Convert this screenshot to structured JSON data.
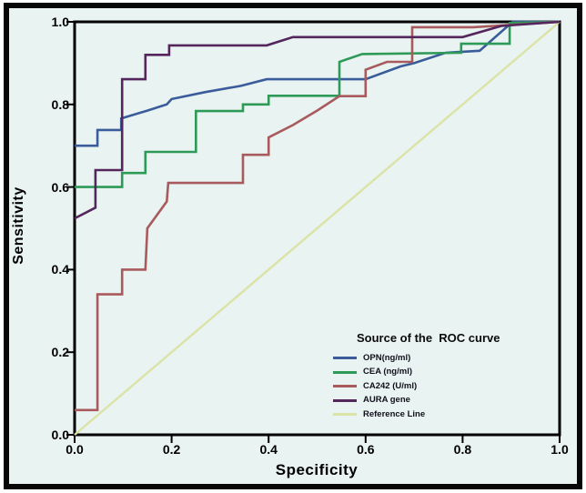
{
  "figure": {
    "background_color": "#e8f3f2",
    "border_color": "#070707"
  },
  "axes": {
    "x_title": "Specificity",
    "y_title": "Sensitivity",
    "x_tick_labels": [
      "0.0",
      "0.2",
      "0.4",
      "0.6",
      "0.8",
      "1.0"
    ],
    "y_tick_labels": [
      "0.0",
      "0.2",
      "0.4",
      "0.6",
      "0.8",
      "1.0"
    ]
  },
  "legend": {
    "title": "Source of the  ROC curve"
  },
  "chart_data": {
    "type": "line",
    "subtype": "roc-step-curves",
    "title": "",
    "xlabel": "Specificity",
    "ylabel": "Sensitivity",
    "xlim": [
      0,
      1
    ],
    "ylim": [
      0,
      1
    ],
    "x_ticks": [
      0,
      0.2,
      0.4,
      0.6,
      0.8,
      1.0
    ],
    "y_ticks": [
      0,
      0.2,
      0.4,
      0.6,
      0.8,
      1.0
    ],
    "grid": false,
    "legend_position": "lower-right-inside",
    "series": [
      {
        "name": "OPN(ng/ml)",
        "color": "#3b5c9b",
        "points": [
          [
            0,
            0.7
          ],
          [
            0.047,
            0.7
          ],
          [
            0.047,
            0.738
          ],
          [
            0.096,
            0.738
          ],
          [
            0.096,
            0.766
          ],
          [
            0.15,
            0.785
          ],
          [
            0.19,
            0.8
          ],
          [
            0.2,
            0.813
          ],
          [
            0.27,
            0.83
          ],
          [
            0.343,
            0.845
          ],
          [
            0.396,
            0.861
          ],
          [
            0.6,
            0.861
          ],
          [
            0.672,
            0.892
          ],
          [
            0.7,
            0.9
          ],
          [
            0.765,
            0.925
          ],
          [
            0.835,
            0.93
          ],
          [
            0.903,
            1.0
          ],
          [
            1.0,
            1.0
          ]
        ]
      },
      {
        "name": "CEA (ng/ml)",
        "color": "#2e9a57",
        "points": [
          [
            0,
            0.6
          ],
          [
            0.098,
            0.6
          ],
          [
            0.098,
            0.634
          ],
          [
            0.146,
            0.634
          ],
          [
            0.146,
            0.685
          ],
          [
            0.25,
            0.685
          ],
          [
            0.25,
            0.784
          ],
          [
            0.347,
            0.784
          ],
          [
            0.347,
            0.8
          ],
          [
            0.4,
            0.8
          ],
          [
            0.4,
            0.821
          ],
          [
            0.546,
            0.821
          ],
          [
            0.546,
            0.903
          ],
          [
            0.593,
            0.922
          ],
          [
            0.797,
            0.925
          ],
          [
            0.797,
            0.947
          ],
          [
            0.897,
            0.947
          ],
          [
            0.897,
            0.997
          ],
          [
            1.0,
            1.0
          ]
        ]
      },
      {
        "name": "CA242 (U/ml)",
        "color": "#a95a5d",
        "points": [
          [
            0,
            0.06
          ],
          [
            0.047,
            0.06
          ],
          [
            0.047,
            0.34
          ],
          [
            0.098,
            0.34
          ],
          [
            0.098,
            0.4
          ],
          [
            0.146,
            0.4
          ],
          [
            0.15,
            0.5
          ],
          [
            0.19,
            0.565
          ],
          [
            0.193,
            0.61
          ],
          [
            0.347,
            0.61
          ],
          [
            0.347,
            0.678
          ],
          [
            0.4,
            0.678
          ],
          [
            0.4,
            0.72
          ],
          [
            0.45,
            0.75
          ],
          [
            0.5,
            0.785
          ],
          [
            0.546,
            0.82
          ],
          [
            0.6,
            0.82
          ],
          [
            0.6,
            0.884
          ],
          [
            0.644,
            0.903
          ],
          [
            0.696,
            0.903
          ],
          [
            0.696,
            0.987
          ],
          [
            0.822,
            0.987
          ],
          [
            1.0,
            1.0
          ]
        ]
      },
      {
        "name": "AURA gene",
        "color": "#54265c",
        "points": [
          [
            0,
            0.524
          ],
          [
            0.043,
            0.55
          ],
          [
            0.043,
            0.641
          ],
          [
            0.098,
            0.641
          ],
          [
            0.098,
            0.861
          ],
          [
            0.146,
            0.861
          ],
          [
            0.146,
            0.92
          ],
          [
            0.195,
            0.92
          ],
          [
            0.195,
            0.943
          ],
          [
            0.396,
            0.943
          ],
          [
            0.45,
            0.963
          ],
          [
            0.8,
            0.963
          ],
          [
            0.88,
            0.99
          ],
          [
            1.0,
            1.0
          ]
        ]
      },
      {
        "name": "Reference Line",
        "color": "#dbe3a6",
        "points": [
          [
            0,
            0
          ],
          [
            1,
            1
          ]
        ]
      }
    ]
  }
}
